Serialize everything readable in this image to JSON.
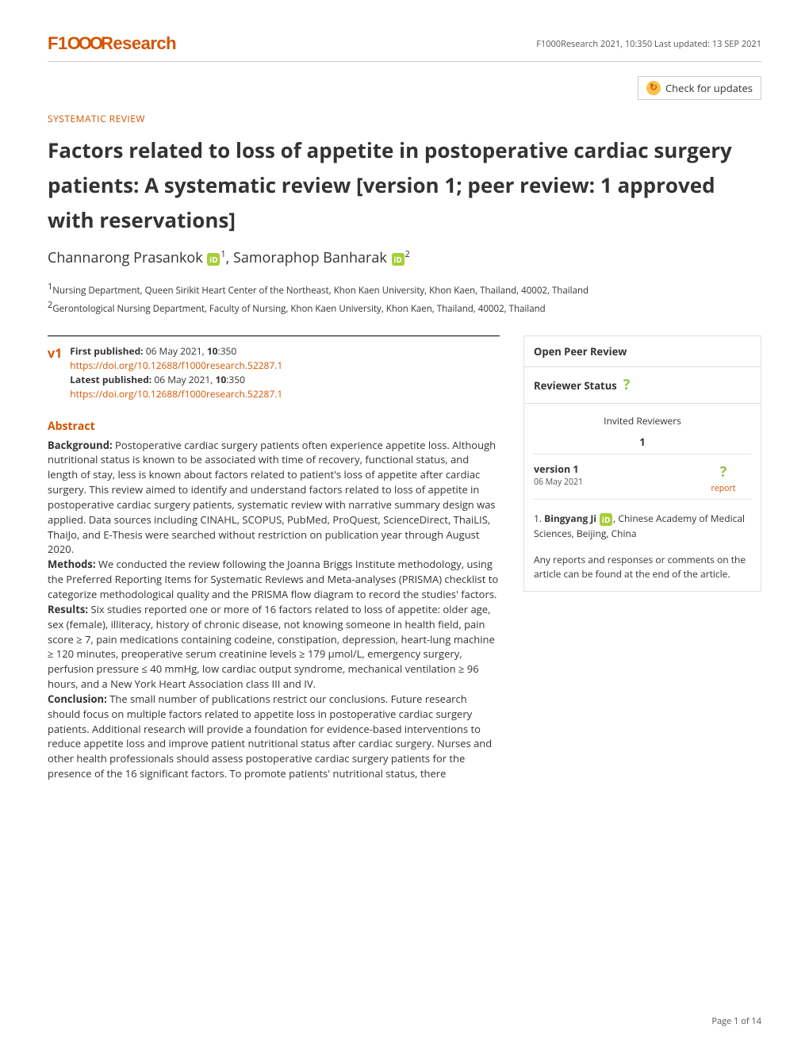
{
  "header": {
    "logo_prefix": "F1",
    "logo_circles": "OOO",
    "logo_suffix": "Research",
    "meta": "F1000Research 2021, 10:350 Last updated: 13 SEP 2021",
    "check_updates": "Check for updates"
  },
  "article": {
    "type": "SYSTEMATIC REVIEW",
    "title": "Factors related to loss of appetite in postoperative cardiac surgery patients: A systematic review [version 1; peer review: 1 approved with reservations]",
    "authors": {
      "a1_name": "Channarong Prasankok",
      "a1_aff": "1",
      "a2_name": "Samoraphop Banharak",
      "a2_aff": "2"
    },
    "affiliations": {
      "aff1": "Nursing Department, Queen Sirikit Heart Center of the Northeast, Khon Kaen University, Khon Kaen, Thailand, 40002, Thailand",
      "aff2": "Gerontological Nursing Department, Faculty of Nursing, Khon Kaen University, Khon Kaen, Thailand, 40002, Thailand"
    }
  },
  "publication": {
    "version_badge": "v1",
    "first_pub_label": "First published:",
    "first_pub_text": " 06 May 2021, ",
    "first_pub_vol": "10",
    "first_pub_issue": ":350",
    "first_pub_doi": "https://doi.org/10.12688/f1000research.52287.1",
    "latest_pub_label": "Latest published:",
    "latest_pub_text": " 06 May 2021, ",
    "latest_pub_vol": "10",
    "latest_pub_issue": ":350",
    "latest_pub_doi": "https://doi.org/10.12688/f1000research.52287.1"
  },
  "abstract": {
    "heading": "Abstract",
    "background_label": "Background: ",
    "background_text": "Postoperative cardiac surgery patients often experience appetite loss. Although nutritional status is known to be associated with time of recovery, functional status, and length of stay, less is known about factors related to patient's loss of appetite after cardiac surgery. This review aimed to identify and understand factors related to loss of appetite in postoperative cardiac surgery patients, systematic review with narrative summary design was applied. Data sources including CINAHL, SCOPUS, PubMed, ProQuest, ScienceDirect, ThaiLIS, ThaiJo, and E-Thesis were searched without restriction on publication year through August 2020.",
    "methods_label": "Methods: ",
    "methods_text": "We conducted the review following the Joanna Briggs Institute methodology, using the Preferred Reporting Items for Systematic Reviews and Meta-analyses (PRISMA) checklist to categorize methodological quality and the PRISMA flow diagram to record the studies' factors.",
    "results_label": "Results: ",
    "results_text": "Six studies reported one or more of 16 factors related to loss of appetite: older age, sex (female), illiteracy, history of chronic disease, not knowing someone in health field, pain score ≥ 7, pain medications containing codeine, constipation, depression, heart-lung machine ≥ 120 minutes, preoperative serum creatinine levels ≥ 179 μmol/L, emergency surgery, perfusion pressure ≤ 40 mmHg, low cardiac output syndrome, mechanical ventilation ≥ 96 hours, and a New York Heart Association class III and IV.",
    "conclusion_label": "Conclusion: ",
    "conclusion_text": "The small number of publications restrict our conclusions. Future research should focus on multiple factors related to appetite loss in postoperative cardiac surgery patients. Additional research will provide a foundation for evidence-based interventions to reduce appetite loss and improve patient nutritional status after cardiac surgery. Nurses and other health professionals should assess postoperative cardiac surgery patients for the presence of the 16 significant factors. To promote patients' nutritional status, there"
  },
  "peer": {
    "heading": "Open Peer Review",
    "status_label": "Reviewer Status",
    "invited_label": "Invited Reviewers",
    "col_num": "1",
    "version_label": "version 1",
    "version_date": "06 May 2021",
    "report_link": "report",
    "reviewer_num": "1. ",
    "reviewer_name": "Bingyang Ji",
    "reviewer_aff": ", Chinese Academy of Medical Sciences, Beijing, China",
    "footer_text": "Any reports and responses or comments on the article can be found at the end of the article."
  },
  "footer": {
    "page_num": "Page 1 of 14"
  },
  "colors": {
    "brand": "#d35400",
    "orcid_green": "#a6ce39",
    "approve_q": "#8dc63f",
    "text": "#333333",
    "border": "#cccccc"
  }
}
